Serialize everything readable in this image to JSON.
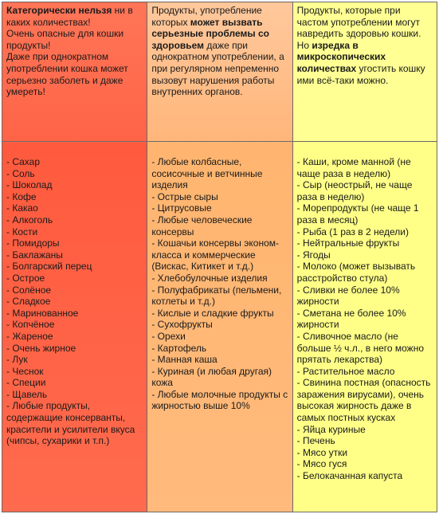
{
  "header": {
    "col1": {
      "bold_lead": "Категорически нельзя",
      "rest_line1": " ни в каких количествах!",
      "line2": "Очень опасные для кошки продукты!",
      "line3": "Даже при однократном употреблении кошка может серьезно заболеть и даже умереть!"
    },
    "col2": {
      "lead": "Продукты, употребление которых ",
      "bold_mid": "может вызвать серьезные проблемы со здоровьем",
      "tail": " даже при однократном употреблении, а при регулярном непременно вызовут нарушения работы внутренних органов."
    },
    "col3": {
      "line1": "Продукты, которые при частом употреблении могут навредить здоровью кошки.",
      "lead2": "Но ",
      "bold2": "изредка в микроскопических количествах",
      "tail2": " угостить кошку ими всё-таки можно."
    }
  },
  "lists": {
    "col1": [
      "- Сахар",
      "- Соль",
      "- Шоколад",
      "- Кофе",
      "- Какао",
      "- Алкоголь",
      "- Кости",
      "- Помидоры",
      "- Баклажаны",
      "- Болгарский перец",
      "- Острое",
      "- Солёное",
      "- Сладкое",
      "- Маринованное",
      "- Копчёное",
      "- Жареное",
      "- Очень жирное",
      "- Лук",
      "- Чеснок",
      "- Специи",
      "- Щавель",
      "- Любые продукты, содержащие консерванты, красители и усилители вкуса",
      "(чипсы, сухарики и т.п.)"
    ],
    "col2": [
      "- Любые колбасные, сосисочные и ветчинные изделия",
      "- Острые сыры",
      "- Цитрусовые",
      "- Любые человеческие консервы",
      "- Кошачьи консервы эконом-класса и коммерческие (Вискас, Китикет и т.д.)",
      "- Хлебобулочные изделия",
      "- Полуфабрикаты (пельмени, котлеты и т.д.)",
      "- Кислые и сладкие фрукты",
      "- Сухофрукты",
      "- Орехи",
      "- Картофель",
      "- Манная каша",
      "- Куриная (и любая другая) кожа",
      "- Любые молочные продукты с жирностью выше 10%"
    ],
    "col3": [
      "- Каши, кроме манной (не чаще раза в неделю)",
      "- Сыр (неострый, не чаще раза в неделю)",
      "- Морепродукты (не чаще 1 раза в месяц)",
      "- Рыба (1 раз в 2 недели)",
      "- Нейтральные фрукты",
      "- Ягоды",
      "- Молоко (может вызывать расстройство стула)",
      "- Сливки не более 10% жирности",
      "- Сметана не более 10% жирности",
      "- Сливочное масло (не больше ½ ч.л., в него можно прятать лекарства)",
      "- Растительное масло",
      "- Свинина постная (опасность заражения вирусами), очень высокая жирность даже в самых постных кусках",
      "- Яйца куриные",
      "- Печень",
      "- Мясо утки",
      "- Мясо гуся",
      "- Белокачанная капуста"
    ]
  },
  "colors": {
    "forbidden": "#ff5a42",
    "harmful": "#ffad5f",
    "rarely": "#ffff80",
    "border": "#6a6a6a"
  }
}
